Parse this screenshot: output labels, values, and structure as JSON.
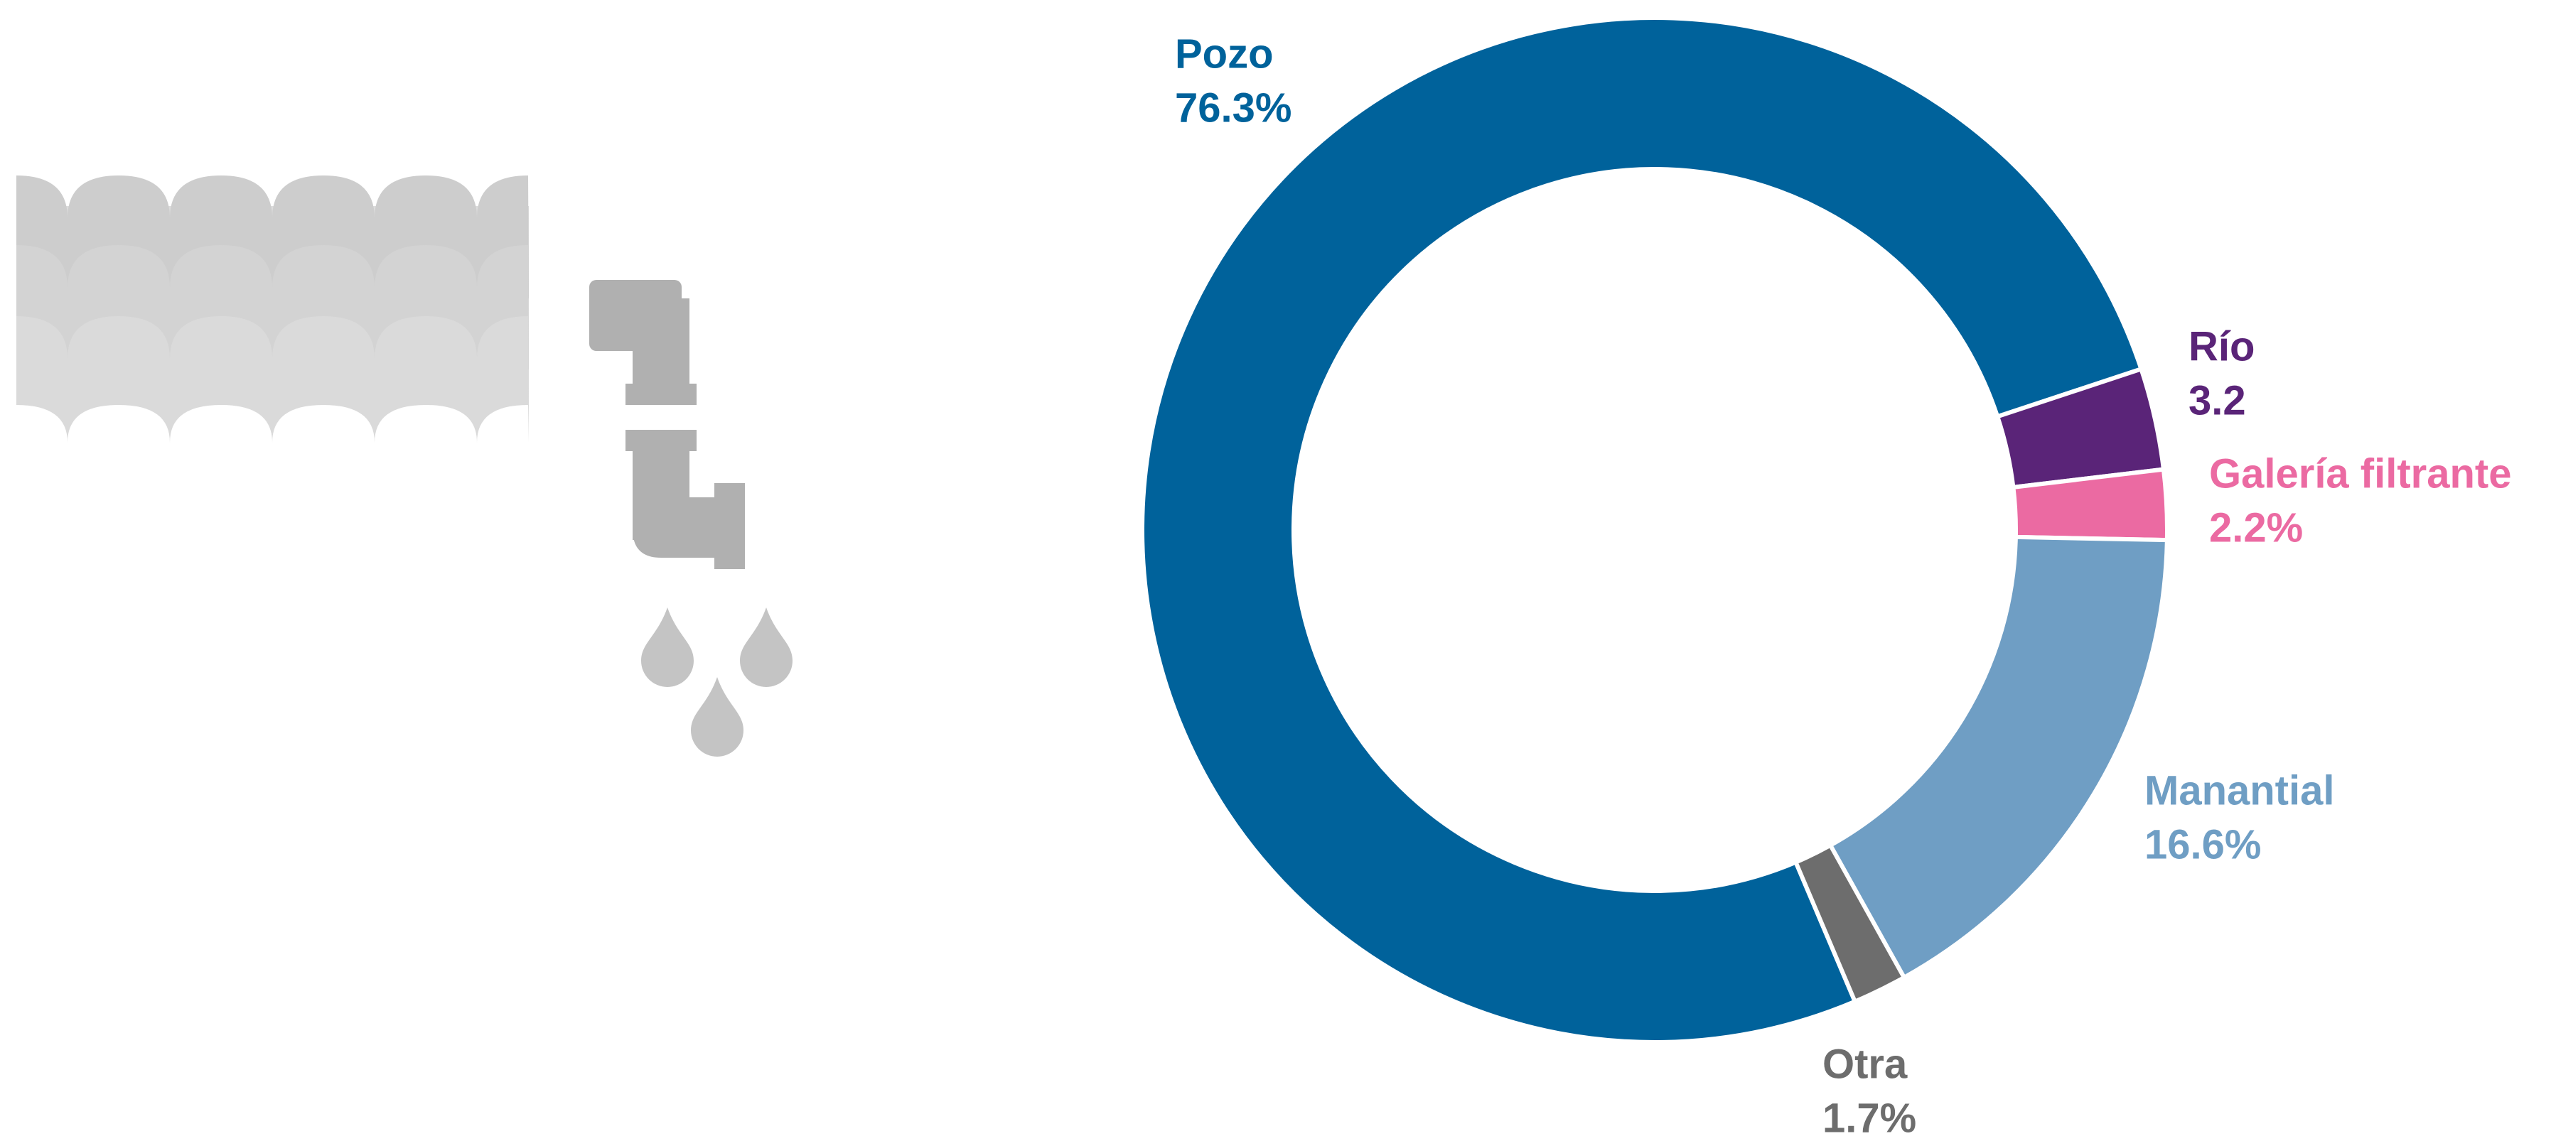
{
  "chart_data": {
    "type": "donut",
    "categories": [
      "Pozo",
      "Río",
      "Galería filtrante",
      "Manantial",
      "Otra"
    ],
    "values": [
      76.3,
      3.2,
      2.2,
      16.6,
      1.7
    ],
    "value_labels": [
      "76.3%",
      "3.2",
      "2.2%",
      "16.6%",
      "1.7%"
    ],
    "colors": [
      "#00629b",
      "#5a2478",
      "#eb6aa2",
      "#6f9ec4",
      "#6d6d6d"
    ]
  }
}
